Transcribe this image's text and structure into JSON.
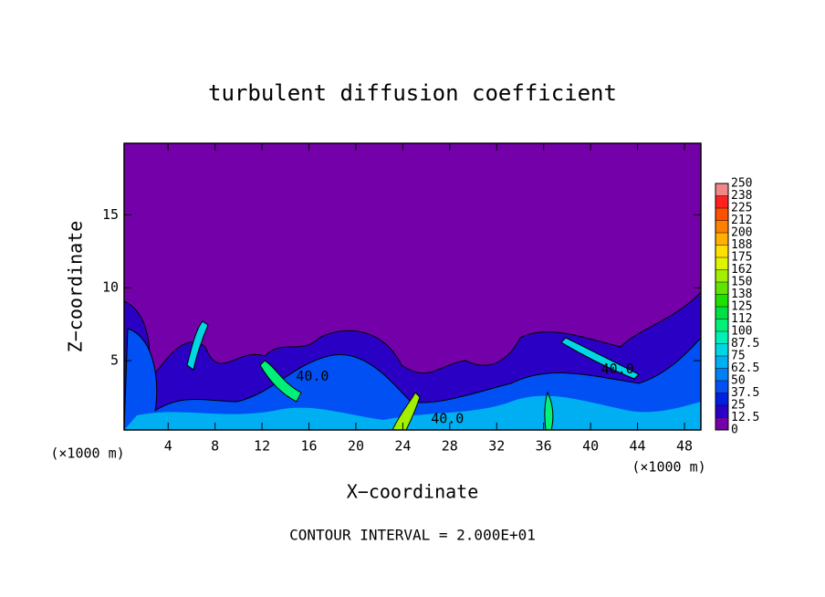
{
  "chart_data": {
    "type": "contour",
    "title": "turbulent diffusion coefficient",
    "x_label": "X−coordinate",
    "y_label": "Z−coordinate",
    "x_unit_left": "(×1000 m)",
    "x_unit_right": "(×1000 m)",
    "footer": "CONTOUR INTERVAL = 2.000E+01",
    "xlim": [
      0.25,
      49.4
    ],
    "ylim": [
      0.25,
      19.9
    ],
    "xticks": [
      4,
      8,
      12,
      16,
      20,
      24,
      28,
      32,
      36,
      40,
      44,
      48
    ],
    "yticks": [
      5,
      10,
      15
    ],
    "contour_labels": [
      {
        "text": "40.0",
        "x": 27.8,
        "y": 1.0
      },
      {
        "text": "40.0",
        "x": 16.3,
        "y": 3.9
      },
      {
        "text": "40.0",
        "x": 42.3,
        "y": 4.4
      }
    ],
    "colorbar": {
      "levels": [
        0,
        12.5,
        25,
        37.5,
        50,
        62.5,
        75,
        87.5,
        100,
        112,
        125,
        138,
        150,
        162,
        175,
        188,
        200,
        212,
        225,
        238,
        250
      ],
      "colors": [
        "#7400aa",
        "#2a00c4",
        "#0020e0",
        "#0050f4",
        "#0080f4",
        "#00aef2",
        "#00d6e4",
        "#00f0b8",
        "#00f078",
        "#00e044",
        "#20e000",
        "#60e400",
        "#a0f000",
        "#e0f400",
        "#ffe000",
        "#ffb000",
        "#ff8000",
        "#ff5000",
        "#ff2020",
        "#f08888"
      ]
    }
  }
}
